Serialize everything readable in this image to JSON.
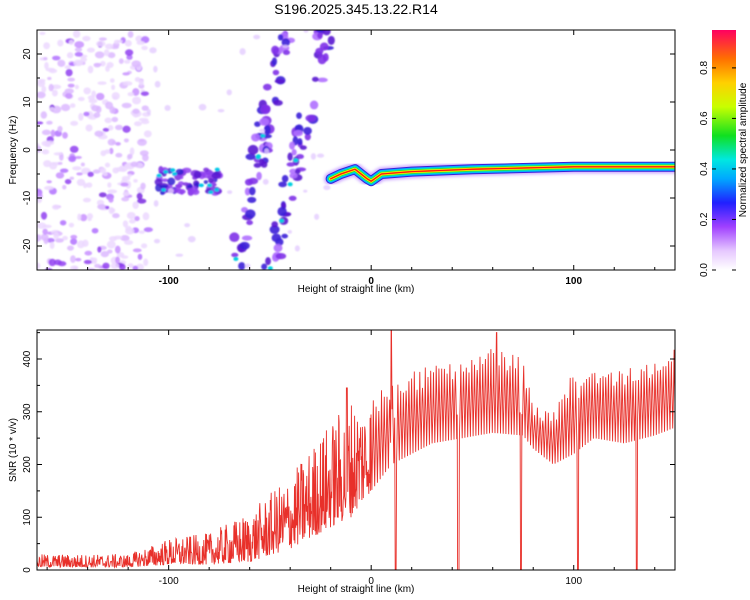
{
  "figure": {
    "title": "S196.2025.345.13.22.R14"
  },
  "colors": {
    "snr_line": "#e8302a",
    "spectrogram_ramp": [
      "#ffffff",
      "#d9b3ff",
      "#8a2be2",
      "#3b2bd6",
      "#00a0ff",
      "#00e0e0",
      "#20e020",
      "#ffff00",
      "#ff8000",
      "#ff0000"
    ]
  },
  "chart_data": [
    {
      "type": "heatmap",
      "title": "S196.2025.345.13.22.R14",
      "xlabel": "Height of straight line (km)",
      "ylabel": "Frequency (Hz)",
      "xlim": [
        -165,
        150
      ],
      "ylim": [
        -25,
        25
      ],
      "x_ticks": [
        -100,
        0,
        100
      ],
      "y_ticks": [
        -20,
        -10,
        0,
        10,
        20
      ],
      "colorbar": {
        "label": "Normalized spectral amplitude",
        "range": [
          0.0,
          0.95
        ],
        "ticks": [
          0.0,
          0.2,
          0.4,
          0.6,
          0.8
        ]
      },
      "features": [
        {
          "name": "scattered noise",
          "x_range": [
            -165,
            -110
          ],
          "y_range": [
            -25,
            25
          ],
          "amplitude": 0.15
        },
        {
          "name": "noise cluster",
          "x_range": [
            -105,
            -75
          ],
          "y_range": [
            -9,
            -4
          ],
          "amplitude": 0.3
        },
        {
          "name": "diagonal track A",
          "x_start": -68,
          "y_start": -25,
          "x_end": -42,
          "y_end": 25,
          "amplitude": 0.25
        },
        {
          "name": "diagonal track B",
          "x_start": -50,
          "y_start": -25,
          "x_end": -22,
          "y_end": 25,
          "amplitude": 0.2
        },
        {
          "name": "main tone",
          "path": [
            [
              -20,
              -6
            ],
            [
              -15,
              -5
            ],
            [
              -8,
              -4
            ],
            [
              -2,
              -6
            ],
            [
              0,
              -6.5
            ],
            [
              5,
              -5
            ],
            [
              20,
              -4.5
            ],
            [
              50,
              -4
            ],
            [
              100,
              -3.5
            ],
            [
              150,
              -3.5
            ]
          ],
          "amplitude": 0.95
        }
      ]
    },
    {
      "type": "line",
      "xlabel": "Height of straight line (km)",
      "ylabel": "SNR (10 * v/v)",
      "xlim": [
        -165,
        150
      ],
      "ylim": [
        0,
        455
      ],
      "x_ticks": [
        -100,
        0,
        100
      ],
      "y_ticks": [
        0,
        100,
        200,
        300,
        400
      ],
      "series": [
        {
          "color": "#e8302a",
          "envelope": [
            {
              "x": -165,
              "low": 5,
              "high": 30
            },
            {
              "x": -120,
              "low": 5,
              "high": 30
            },
            {
              "x": -100,
              "low": 10,
              "high": 60
            },
            {
              "x": -80,
              "low": 10,
              "high": 70
            },
            {
              "x": -60,
              "low": 15,
              "high": 110
            },
            {
              "x": -40,
              "low": 40,
              "high": 180
            },
            {
              "x": -25,
              "low": 70,
              "high": 260
            },
            {
              "x": -10,
              "low": 100,
              "high": 330
            },
            {
              "x": 0,
              "low": 150,
              "high": 330
            },
            {
              "x": 10,
              "low": 200,
              "high": 360
            },
            {
              "x": 30,
              "low": 240,
              "high": 390
            },
            {
              "x": 60,
              "low": 260,
              "high": 420
            },
            {
              "x": 75,
              "low": 255,
              "high": 410
            },
            {
              "x": 80,
              "low": 230,
              "high": 310
            },
            {
              "x": 90,
              "low": 200,
              "high": 300
            },
            {
              "x": 100,
              "low": 220,
              "high": 380
            },
            {
              "x": 110,
              "low": 250,
              "high": 390
            },
            {
              "x": 125,
              "low": 240,
              "high": 380
            },
            {
              "x": 140,
              "low": 255,
              "high": 400
            },
            {
              "x": 150,
              "low": 270,
              "high": 420
            }
          ],
          "spikes_high": [
            {
              "x": -12,
              "y": 345
            },
            {
              "x": 10,
              "y": 455
            },
            {
              "x": 62,
              "y": 450
            }
          ],
          "dropouts": [
            {
              "x": 12,
              "y": 0
            },
            {
              "x": 43,
              "y": 0
            },
            {
              "x": 74,
              "y": 0
            },
            {
              "x": 102,
              "y": 0
            },
            {
              "x": 131,
              "y": 0
            }
          ]
        }
      ]
    }
  ]
}
